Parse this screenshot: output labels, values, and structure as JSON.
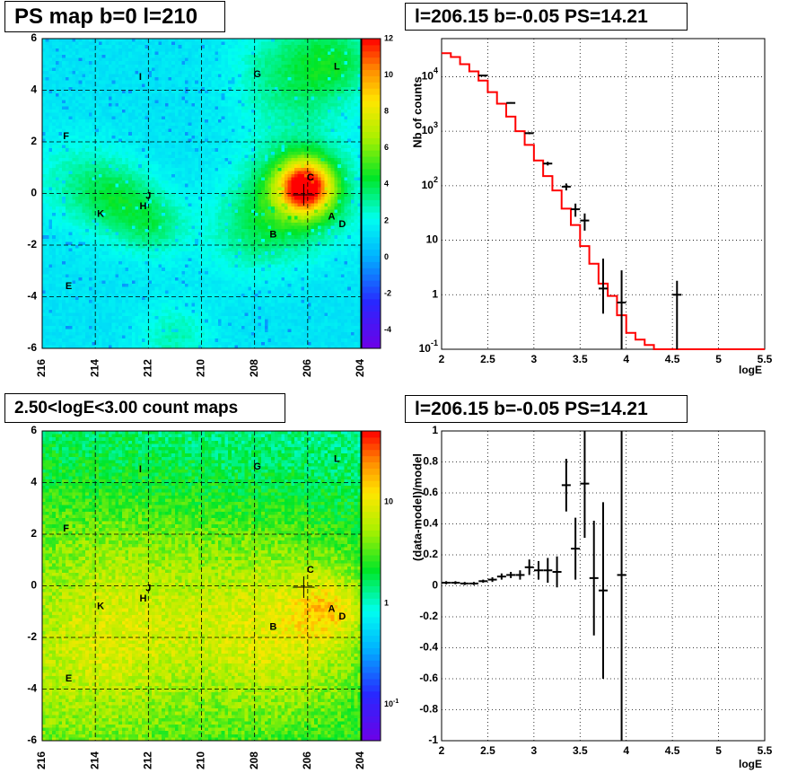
{
  "titles": {
    "ps_map": "PS map b=0 l=210",
    "spectrum": "l=206.15 b=-0.05 PS=14.21",
    "count_map": "2.50<logE<3.00 count maps",
    "residual": "l=206.15 b=-0.05 PS=14.21"
  },
  "colors": {
    "model_line": "#ff0000",
    "data": "#000000",
    "grid": "#000000"
  },
  "chart_data": [
    {
      "type": "heatmap",
      "title": "PS map b=0 l=210",
      "x_ticks": [
        "216",
        "214",
        "212",
        "210",
        "208",
        "206",
        "204"
      ],
      "y_ticks": [
        "-6",
        "-4",
        "-2",
        "0",
        "2",
        "4",
        "6"
      ],
      "xlim": [
        216,
        204
      ],
      "ylim": [
        -6,
        6
      ],
      "colorbar_ticks": [
        "-4",
        "-2",
        "0",
        "2",
        "4",
        "6",
        "8",
        "10",
        "12"
      ],
      "colorbar_range": [
        -5,
        12
      ],
      "source_labels": [
        {
          "name": "I",
          "l": 212.3,
          "b": 4.5
        },
        {
          "name": "G",
          "l": 207.9,
          "b": 4.6
        },
        {
          "name": "L",
          "l": 204.9,
          "b": 4.9
        },
        {
          "name": "F",
          "l": 215.1,
          "b": 2.2
        },
        {
          "name": "C",
          "l": 205.9,
          "b": 0.6
        },
        {
          "name": "J",
          "l": 212.0,
          "b": -0.1
        },
        {
          "name": "H",
          "l": 212.2,
          "b": -0.5
        },
        {
          "name": "K",
          "l": 213.8,
          "b": -0.8
        },
        {
          "name": "A",
          "l": 205.1,
          "b": -0.9
        },
        {
          "name": "D",
          "l": 204.7,
          "b": -1.2
        },
        {
          "name": "B",
          "l": 207.3,
          "b": -1.6
        },
        {
          "name": "E",
          "l": 215.0,
          "b": -3.6
        }
      ]
    },
    {
      "type": "line",
      "title": "l=206.15 b=-0.05 PS=14.21",
      "xlabel": "logE",
      "ylabel": "Nb of counts",
      "xlim": [
        2,
        5.5
      ],
      "ylim": [
        0.1,
        50000
      ],
      "log_y": true,
      "x_ticks": [
        "2",
        "2.5",
        "3",
        "3.5",
        "4",
        "4.5",
        "5",
        "5.5"
      ],
      "y_ticks": [
        "10^-1",
        "1",
        "10",
        "10^2",
        "10^3",
        "10^4"
      ],
      "grid": true,
      "series": [
        {
          "kind": "model-histogram",
          "bin_edges": [
            2.0,
            2.1,
            2.2,
            2.3,
            2.4,
            2.5,
            2.6,
            2.7,
            2.8,
            2.9,
            3.0,
            3.1,
            3.2,
            3.3,
            3.4,
            3.5,
            3.6,
            3.7,
            3.8,
            3.9,
            4.0,
            4.1,
            4.2,
            4.3,
            4.4,
            5.5
          ],
          "values": [
            27000,
            23000,
            17000,
            12500,
            8500,
            5200,
            3200,
            1850,
            1000,
            560,
            290,
            150,
            82,
            38,
            19,
            7.8,
            3.7,
            1.6,
            0.95,
            0.42,
            0.2,
            0.15,
            0.12,
            0.1,
            0.1
          ]
        },
        {
          "kind": "data-points",
          "x": [
            2.45,
            2.75,
            2.95,
            3.15,
            3.35,
            3.45,
            3.55,
            3.75,
            3.95,
            4.55
          ],
          "y": [
            10500,
            3300,
            920,
            255,
            96,
            37,
            23,
            1.3,
            0.72,
            1.0
          ],
          "y_low": [
            10300,
            3200,
            880,
            235,
            82,
            27,
            15,
            0.45,
            0.1,
            0.1
          ],
          "y_high": [
            10700,
            3400,
            960,
            275,
            110,
            47,
            31,
            4.6,
            2.8,
            1.8
          ]
        }
      ]
    },
    {
      "type": "heatmap",
      "title": "2.50<logE<3.00 count maps",
      "x_ticks": [
        "216",
        "214",
        "212",
        "210",
        "208",
        "206",
        "204"
      ],
      "y_ticks": [
        "-6",
        "-4",
        "-2",
        "0",
        "2",
        "4",
        "6"
      ],
      "xlim": [
        216,
        204
      ],
      "ylim": [
        -6,
        6
      ],
      "colorbar_ticks": [
        "10^-1",
        "1",
        "10"
      ],
      "colorbar_range_log10": [
        -1.2,
        1.7
      ],
      "source_labels": [
        {
          "name": "I",
          "l": 212.3,
          "b": 4.5
        },
        {
          "name": "G",
          "l": 207.9,
          "b": 4.6
        },
        {
          "name": "L",
          "l": 204.9,
          "b": 4.9
        },
        {
          "name": "F",
          "l": 215.1,
          "b": 2.2
        },
        {
          "name": "C",
          "l": 205.9,
          "b": 0.6
        },
        {
          "name": "J",
          "l": 212.0,
          "b": -0.1
        },
        {
          "name": "H",
          "l": 212.2,
          "b": -0.5
        },
        {
          "name": "K",
          "l": 213.8,
          "b": -0.8
        },
        {
          "name": "A",
          "l": 205.1,
          "b": -0.9
        },
        {
          "name": "D",
          "l": 204.7,
          "b": -1.2
        },
        {
          "name": "B",
          "l": 207.3,
          "b": -1.6
        },
        {
          "name": "E",
          "l": 215.0,
          "b": -3.6
        }
      ]
    },
    {
      "type": "scatter",
      "title": "l=206.15 b=-0.05 PS=14.21",
      "xlabel": "logE",
      "ylabel": "(data-model)/model",
      "xlim": [
        2,
        5.5
      ],
      "ylim": [
        -1,
        1
      ],
      "x_ticks": [
        "2",
        "2.5",
        "3",
        "3.5",
        "4",
        "4.5",
        "5",
        "5.5"
      ],
      "y_ticks": [
        "-1",
        "-0.8",
        "-0.6",
        "-0.4",
        "-0.2",
        "0",
        "0.2",
        "0.4",
        "0.6",
        "0.8",
        "1"
      ],
      "grid": true,
      "series": [
        {
          "kind": "data-points",
          "x": [
            2.05,
            2.15,
            2.25,
            2.35,
            2.45,
            2.55,
            2.65,
            2.75,
            2.85,
            2.95,
            3.05,
            3.15,
            3.25,
            3.35,
            3.45,
            3.55,
            3.65,
            3.75,
            3.95
          ],
          "y": [
            0.02,
            0.02,
            0.015,
            0.015,
            0.03,
            0.04,
            0.06,
            0.07,
            0.07,
            0.12,
            0.1,
            0.1,
            0.09,
            0.65,
            0.24,
            0.66,
            0.05,
            -0.03,
            0.07
          ],
          "y_err": [
            0.01,
            0.01,
            0.01,
            0.01,
            0.01,
            0.015,
            0.02,
            0.02,
            0.03,
            0.05,
            0.06,
            0.08,
            0.1,
            0.17,
            0.2,
            0.35,
            0.37,
            0.57,
            1.2
          ]
        }
      ]
    }
  ]
}
